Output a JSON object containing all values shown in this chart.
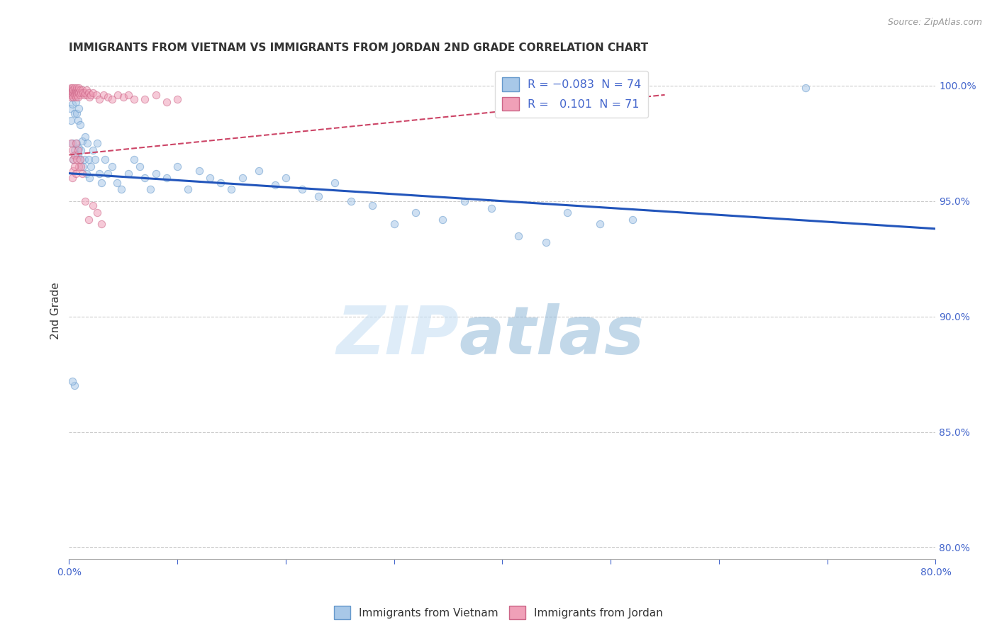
{
  "title": "IMMIGRANTS FROM VIETNAM VS IMMIGRANTS FROM JORDAN 2ND GRADE CORRELATION CHART",
  "source": "Source: ZipAtlas.com",
  "ylabel": "2nd Grade",
  "xlim": [
    0.0,
    0.8
  ],
  "ylim": [
    0.795,
    1.01
  ],
  "xticks": [
    0.0,
    0.1,
    0.2,
    0.3,
    0.4,
    0.5,
    0.6,
    0.7,
    0.8
  ],
  "xtick_labels": [
    "0.0%",
    "",
    "",
    "",
    "",
    "",
    "",
    "",
    "80.0%"
  ],
  "ytick_labels_right": [
    "80.0%",
    "85.0%",
    "90.0%",
    "95.0%",
    "100.0%"
  ],
  "yticks_right": [
    0.8,
    0.85,
    0.9,
    0.95,
    1.0
  ],
  "blue_scatter_x": [
    0.001,
    0.002,
    0.002,
    0.003,
    0.003,
    0.004,
    0.004,
    0.005,
    0.005,
    0.006,
    0.006,
    0.007,
    0.007,
    0.008,
    0.008,
    0.009,
    0.009,
    0.01,
    0.01,
    0.011,
    0.012,
    0.013,
    0.014,
    0.015,
    0.016,
    0.017,
    0.018,
    0.019,
    0.02,
    0.022,
    0.024,
    0.026,
    0.028,
    0.03,
    0.033,
    0.036,
    0.04,
    0.044,
    0.048,
    0.055,
    0.06,
    0.065,
    0.07,
    0.075,
    0.08,
    0.09,
    0.1,
    0.11,
    0.12,
    0.13,
    0.14,
    0.15,
    0.16,
    0.175,
    0.19,
    0.2,
    0.215,
    0.23,
    0.245,
    0.26,
    0.28,
    0.3,
    0.32,
    0.345,
    0.365,
    0.39,
    0.415,
    0.44,
    0.46,
    0.49,
    0.52,
    0.68,
    0.005,
    0.003
  ],
  "blue_scatter_y": [
    0.99,
    0.985,
    0.998,
    0.975,
    0.992,
    0.968,
    0.995,
    0.972,
    0.988,
    0.97,
    0.993,
    0.975,
    0.988,
    0.97,
    0.985,
    0.973,
    0.99,
    0.968,
    0.983,
    0.972,
    0.976,
    0.965,
    0.968,
    0.978,
    0.962,
    0.975,
    0.968,
    0.96,
    0.965,
    0.972,
    0.968,
    0.975,
    0.962,
    0.958,
    0.968,
    0.962,
    0.965,
    0.958,
    0.955,
    0.962,
    0.968,
    0.965,
    0.96,
    0.955,
    0.962,
    0.96,
    0.965,
    0.955,
    0.963,
    0.96,
    0.958,
    0.955,
    0.96,
    0.963,
    0.957,
    0.96,
    0.955,
    0.952,
    0.958,
    0.95,
    0.948,
    0.94,
    0.945,
    0.942,
    0.95,
    0.947,
    0.935,
    0.932,
    0.945,
    0.94,
    0.942,
    0.999,
    0.87,
    0.872
  ],
  "pink_scatter_x": [
    0.001,
    0.001,
    0.002,
    0.002,
    0.002,
    0.003,
    0.003,
    0.003,
    0.004,
    0.004,
    0.004,
    0.005,
    0.005,
    0.005,
    0.006,
    0.006,
    0.006,
    0.007,
    0.007,
    0.007,
    0.008,
    0.008,
    0.008,
    0.009,
    0.009,
    0.01,
    0.01,
    0.011,
    0.012,
    0.013,
    0.014,
    0.015,
    0.016,
    0.017,
    0.018,
    0.019,
    0.02,
    0.022,
    0.025,
    0.028,
    0.032,
    0.036,
    0.04,
    0.045,
    0.05,
    0.055,
    0.06,
    0.07,
    0.08,
    0.09,
    0.1,
    0.002,
    0.003,
    0.004,
    0.005,
    0.006,
    0.007,
    0.008,
    0.009,
    0.01,
    0.011,
    0.012,
    0.015,
    0.018,
    0.022,
    0.026,
    0.03,
    0.003,
    0.004,
    0.005,
    0.006
  ],
  "pink_scatter_y": [
    0.998,
    0.996,
    0.999,
    0.997,
    0.995,
    0.998,
    0.996,
    0.999,
    0.997,
    0.998,
    0.995,
    0.999,
    0.997,
    0.996,
    0.998,
    0.997,
    0.995,
    0.999,
    0.997,
    0.996,
    0.998,
    0.997,
    0.995,
    0.999,
    0.997,
    0.998,
    0.996,
    0.997,
    0.998,
    0.997,
    0.996,
    0.997,
    0.998,
    0.996,
    0.997,
    0.995,
    0.996,
    0.997,
    0.996,
    0.994,
    0.996,
    0.995,
    0.994,
    0.996,
    0.995,
    0.996,
    0.994,
    0.994,
    0.996,
    0.993,
    0.994,
    0.975,
    0.972,
    0.968,
    0.97,
    0.975,
    0.968,
    0.972,
    0.965,
    0.968,
    0.965,
    0.962,
    0.95,
    0.942,
    0.948,
    0.945,
    0.94,
    0.96,
    0.963,
    0.965,
    0.962
  ],
  "blue_line_x": [
    0.0,
    0.8
  ],
  "blue_line_y": [
    0.962,
    0.938
  ],
  "pink_line_x": [
    0.0,
    0.55
  ],
  "pink_line_y": [
    0.97,
    0.996
  ],
  "watermark_zip": "ZIP",
  "watermark_atlas": "atlas",
  "bg_color": "#ffffff",
  "scatter_alpha": 0.55,
  "scatter_size": 55,
  "blue_color": "#a8c8e8",
  "blue_edge": "#6699cc",
  "pink_color": "#f0a0b8",
  "pink_edge": "#cc6688",
  "blue_line_color": "#2255bb",
  "pink_line_color": "#cc4466",
  "grid_color": "#cccccc",
  "title_color": "#333333",
  "axis_label_color": "#4466cc",
  "source_color": "#999999"
}
